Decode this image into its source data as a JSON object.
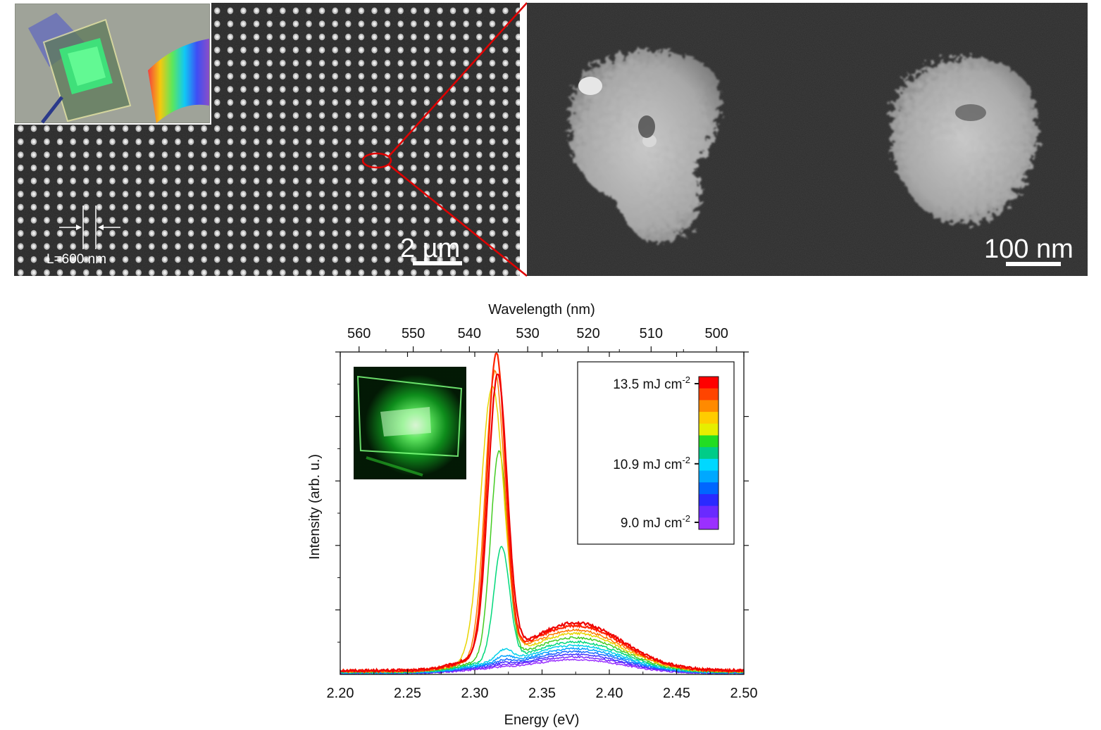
{
  "panels": {
    "sem_left": {
      "scale_bar": "2 µm",
      "period_label": "L=600 nm"
    },
    "sem_right": {
      "scale_bar": "100 nm"
    }
  },
  "chart_data": {
    "type": "line",
    "xlabel": "Energy (eV)",
    "ylabel": "Intensity (arb. u.)",
    "top_axis_label": "Wavelength (nm)",
    "xlim": [
      2.2,
      2.5
    ],
    "ylim": [
      0,
      1
    ],
    "x_ticks": [
      "2.20",
      "2.25",
      "2.30",
      "2.35",
      "2.40",
      "2.45",
      "2.50"
    ],
    "top_ticks": [
      560,
      550,
      540,
      530,
      520,
      510,
      500
    ],
    "y_tick_labels_shown": false,
    "grid": false,
    "colorbar": {
      "labels": [
        {
          "value": 13.5,
          "text": "13.5 mJ cm",
          "sup": "-2"
        },
        {
          "value": 10.9,
          "text": "10.9 mJ cm",
          "sup": "-2"
        },
        {
          "value": 9.0,
          "text": "9.0 mJ cm",
          "sup": "-2"
        }
      ],
      "colors": [
        "#ff0000",
        "#ff4400",
        "#ff8a00",
        "#ffcc00",
        "#e6ee00",
        "#22dd22",
        "#00cc88",
        "#00d8ff",
        "#00a8ff",
        "#0066ff",
        "#2a2aff",
        "#6a2aff",
        "#9b30ff"
      ]
    },
    "series": [
      {
        "color": "#ee0000",
        "peak": 0.86,
        "peak_center": 2.317,
        "peak_width": 0.007,
        "bump": 0.148,
        "base": 0.012
      },
      {
        "color": "#ff2200",
        "peak": 0.93,
        "peak_center": 2.316,
        "peak_width": 0.0068,
        "bump": 0.14,
        "base": 0.011
      },
      {
        "color": "#ff7a00",
        "peak": 0.88,
        "peak_center": 2.315,
        "peak_width": 0.0072,
        "bump": 0.128,
        "base": 0.01
      },
      {
        "color": "#e8d400",
        "peak": 0.84,
        "peak_center": 2.313,
        "peak_width": 0.0085,
        "bump": 0.118,
        "base": 0.009
      },
      {
        "color": "#44cc22",
        "peak": 0.64,
        "peak_center": 2.318,
        "peak_width": 0.0062,
        "bump": 0.106,
        "base": 0.008
      },
      {
        "color": "#00d87a",
        "peak": 0.35,
        "peak_center": 2.32,
        "peak_width": 0.0058,
        "bump": 0.094,
        "base": 0.007
      },
      {
        "color": "#00d0e8",
        "peak": 0.035,
        "peak_center": 2.322,
        "peak_width": 0.006,
        "bump": 0.084,
        "base": 0.006
      },
      {
        "color": "#00a0ff",
        "peak": 0.02,
        "peak_center": 2.322,
        "peak_width": 0.006,
        "bump": 0.075,
        "base": 0.005
      },
      {
        "color": "#1a66ff",
        "peak": 0.012,
        "peak_center": 2.322,
        "peak_width": 0.006,
        "bump": 0.066,
        "base": 0.005
      },
      {
        "color": "#4433ff",
        "peak": 0.008,
        "peak_center": 2.322,
        "peak_width": 0.006,
        "bump": 0.058,
        "base": 0.004
      },
      {
        "color": "#7a2aff",
        "peak": 0.005,
        "peak_center": 2.322,
        "peak_width": 0.006,
        "bump": 0.05,
        "base": 0.004
      },
      {
        "color": "#9b30ff",
        "peak": 0.003,
        "peak_center": 2.322,
        "peak_width": 0.006,
        "bump": 0.043,
        "base": 0.003
      }
    ]
  }
}
